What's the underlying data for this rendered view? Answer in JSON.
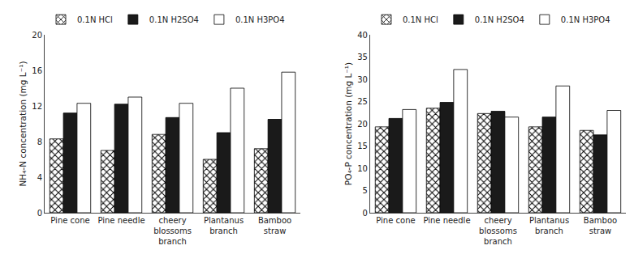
{
  "chart_data": [
    {
      "type": "bar",
      "categories": [
        "Pine cone",
        "Pine needle",
        "cheery\nblossoms\nbranch",
        "Plantanus\nbranch",
        "Bamboo\nstraw"
      ],
      "ylabel": "NH₄-N concentration (mg L⁻¹)",
      "series": [
        {
          "name": "0.1N HCl",
          "color": "#ffffff",
          "marker": "crosshatch",
          "values": [
            8.3,
            7.0,
            8.8,
            6.0,
            7.2
          ]
        },
        {
          "name": "0.1N H2SO4",
          "color": "#1a1a1a",
          "values": [
            11.2,
            12.2,
            10.7,
            9.0,
            10.5
          ]
        },
        {
          "name": "0.1N H3PO4",
          "color": "#ffffff",
          "values": [
            12.3,
            13.0,
            12.3,
            14.0,
            15.8
          ]
        }
      ],
      "ylim": [
        0,
        20
      ],
      "yticks": [
        0,
        4,
        8,
        12,
        16,
        20
      ],
      "grid": false,
      "legend": "top"
    },
    {
      "type": "bar",
      "categories": [
        "Pine cone",
        "Pine needle",
        "cheery\nblossoms\nbranch",
        "Plantanus\nbranch",
        "Bamboo\nstraw"
      ],
      "ylabel": "PO₄-P concentration (mg L⁻¹)",
      "series": [
        {
          "name": "0.1N HCl",
          "color": "#ffffff",
          "marker": "crosshatch",
          "values": [
            19.3,
            23.5,
            22.3,
            19.3,
            18.5
          ]
        },
        {
          "name": "0.1N H2SO4",
          "color": "#1a1a1a",
          "values": [
            21.2,
            24.8,
            22.8,
            21.5,
            17.5
          ]
        },
        {
          "name": "0.1N H3PO4",
          "color": "#ffffff",
          "values": [
            23.2,
            32.2,
            21.5,
            28.5,
            23.0
          ]
        }
      ],
      "ylim": [
        0,
        40
      ],
      "yticks": [
        0,
        5,
        10,
        15,
        20,
        25,
        30,
        35,
        40
      ],
      "grid": false,
      "legend": "top"
    }
  ]
}
